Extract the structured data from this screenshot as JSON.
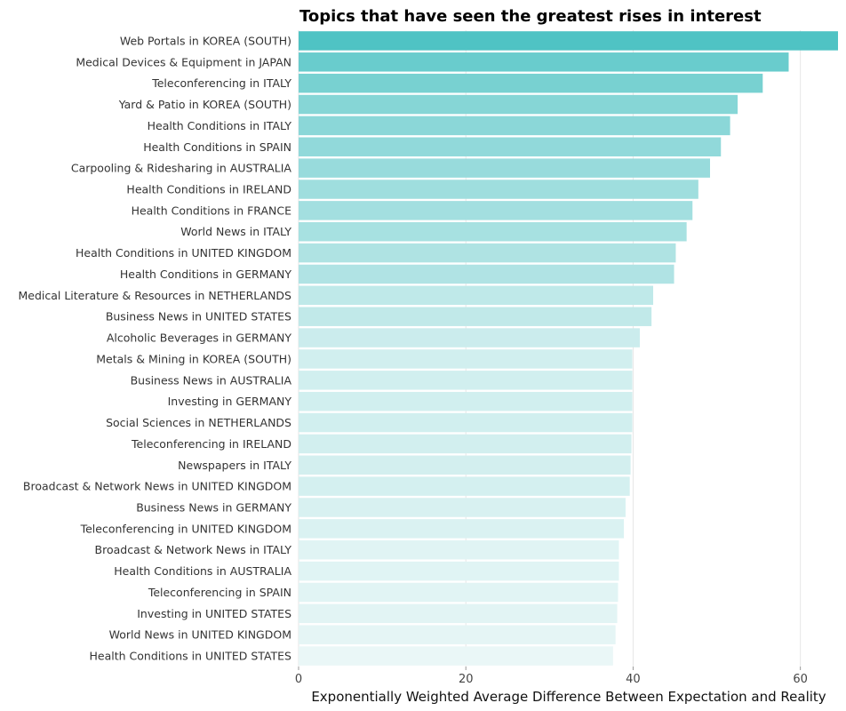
{
  "chart_data": {
    "type": "bar",
    "orientation": "horizontal",
    "title": "Topics that have seen the greatest rises in interest",
    "xlabel": "Exponentially Weighted Average Difference Between Expectation and Reality",
    "ylabel": "",
    "xlim": [
      0,
      64.5
    ],
    "xticks": [
      0,
      20,
      40,
      60
    ],
    "grid": true,
    "legend": "none",
    "color_high": "#4fc3c4",
    "color_low": "#eaf7f7",
    "categories": [
      "Web Portals in KOREA (SOUTH)",
      "Medical Devices & Equipment in JAPAN",
      "Teleconferencing in ITALY",
      "Yard & Patio in KOREA (SOUTH)",
      "Health Conditions in ITALY",
      "Health Conditions in SPAIN",
      "Carpooling & Ridesharing in AUSTRALIA",
      "Health Conditions in IRELAND",
      "Health Conditions in FRANCE",
      "World News in ITALY",
      "Health Conditions in UNITED KINGDOM",
      "Health Conditions in GERMANY",
      "Medical Literature & Resources in NETHERLANDS",
      "Business News in UNITED STATES",
      "Alcoholic Beverages in GERMANY",
      "Metals & Mining in KOREA (SOUTH)",
      "Business News in AUSTRALIA",
      "Investing in GERMANY",
      "Social Sciences in NETHERLANDS",
      "Teleconferencing in IRELAND",
      "Newspapers in ITALY",
      "Broadcast & Network News in UNITED KINGDOM",
      "Business News in GERMANY",
      "Teleconferencing in UNITED KINGDOM",
      "Broadcast & Network News in ITALY",
      "Health Conditions in AUSTRALIA",
      "Teleconferencing in SPAIN",
      "Investing in UNITED STATES",
      "World News in UNITED KINGDOM",
      "Health Conditions in UNITED STATES"
    ],
    "values": [
      64.5,
      58.6,
      55.5,
      52.5,
      51.6,
      50.5,
      49.2,
      47.8,
      47.1,
      46.4,
      45.1,
      44.9,
      42.4,
      42.2,
      40.8,
      39.9,
      39.9,
      39.9,
      39.9,
      39.8,
      39.7,
      39.6,
      39.1,
      38.9,
      38.3,
      38.3,
      38.2,
      38.1,
      37.9,
      37.6
    ]
  }
}
